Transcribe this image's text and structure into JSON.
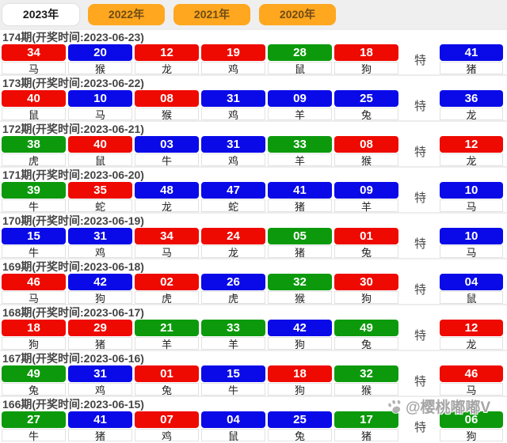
{
  "tabs": [
    {
      "label": "2023年",
      "selected": true
    },
    {
      "label": "2022年",
      "selected": false
    },
    {
      "label": "2021年",
      "selected": false
    },
    {
      "label": "2020年",
      "selected": false
    }
  ],
  "special_label": "特",
  "watermark": {
    "icon": "paw-icon",
    "text": "@樱桃嘟嘟V"
  },
  "colors": {
    "red": "#ee0a00",
    "blue": "#0a0ae8",
    "green": "#0c9a0c",
    "tab_orange": "#ffa71f"
  },
  "draws": [
    {
      "header": "174期(开奖时间:2023-06-23)",
      "numbers": [
        {
          "num": "34",
          "color": "red",
          "zodiac": "马"
        },
        {
          "num": "20",
          "color": "blue",
          "zodiac": "猴"
        },
        {
          "num": "12",
          "color": "red",
          "zodiac": "龙"
        },
        {
          "num": "19",
          "color": "red",
          "zodiac": "鸡"
        },
        {
          "num": "28",
          "color": "green",
          "zodiac": "鼠"
        },
        {
          "num": "18",
          "color": "red",
          "zodiac": "狗"
        }
      ],
      "special": {
        "num": "41",
        "color": "blue",
        "zodiac": "猪"
      }
    },
    {
      "header": "173期(开奖时间:2023-06-22)",
      "numbers": [
        {
          "num": "40",
          "color": "red",
          "zodiac": "鼠"
        },
        {
          "num": "10",
          "color": "blue",
          "zodiac": "马"
        },
        {
          "num": "08",
          "color": "red",
          "zodiac": "猴"
        },
        {
          "num": "31",
          "color": "blue",
          "zodiac": "鸡"
        },
        {
          "num": "09",
          "color": "blue",
          "zodiac": "羊"
        },
        {
          "num": "25",
          "color": "blue",
          "zodiac": "兔"
        }
      ],
      "special": {
        "num": "36",
        "color": "blue",
        "zodiac": "龙"
      }
    },
    {
      "header": "172期(开奖时间:2023-06-21)",
      "numbers": [
        {
          "num": "38",
          "color": "green",
          "zodiac": "虎"
        },
        {
          "num": "40",
          "color": "red",
          "zodiac": "鼠"
        },
        {
          "num": "03",
          "color": "blue",
          "zodiac": "牛"
        },
        {
          "num": "31",
          "color": "blue",
          "zodiac": "鸡"
        },
        {
          "num": "33",
          "color": "green",
          "zodiac": "羊"
        },
        {
          "num": "08",
          "color": "red",
          "zodiac": "猴"
        }
      ],
      "special": {
        "num": "12",
        "color": "red",
        "zodiac": "龙"
      }
    },
    {
      "header": "171期(开奖时间:2023-06-20)",
      "numbers": [
        {
          "num": "39",
          "color": "green",
          "zodiac": "牛"
        },
        {
          "num": "35",
          "color": "red",
          "zodiac": "蛇"
        },
        {
          "num": "48",
          "color": "blue",
          "zodiac": "龙"
        },
        {
          "num": "47",
          "color": "blue",
          "zodiac": "蛇"
        },
        {
          "num": "41",
          "color": "blue",
          "zodiac": "猪"
        },
        {
          "num": "09",
          "color": "blue",
          "zodiac": "羊"
        }
      ],
      "special": {
        "num": "10",
        "color": "blue",
        "zodiac": "马"
      }
    },
    {
      "header": "170期(开奖时间:2023-06-19)",
      "numbers": [
        {
          "num": "15",
          "color": "blue",
          "zodiac": "牛"
        },
        {
          "num": "31",
          "color": "blue",
          "zodiac": "鸡"
        },
        {
          "num": "34",
          "color": "red",
          "zodiac": "马"
        },
        {
          "num": "24",
          "color": "red",
          "zodiac": "龙"
        },
        {
          "num": "05",
          "color": "green",
          "zodiac": "猪"
        },
        {
          "num": "01",
          "color": "red",
          "zodiac": "兔"
        }
      ],
      "special": {
        "num": "10",
        "color": "blue",
        "zodiac": "马"
      }
    },
    {
      "header": "169期(开奖时间:2023-06-18)",
      "numbers": [
        {
          "num": "46",
          "color": "red",
          "zodiac": "马"
        },
        {
          "num": "42",
          "color": "blue",
          "zodiac": "狗"
        },
        {
          "num": "02",
          "color": "red",
          "zodiac": "虎"
        },
        {
          "num": "26",
          "color": "blue",
          "zodiac": "虎"
        },
        {
          "num": "32",
          "color": "green",
          "zodiac": "猴"
        },
        {
          "num": "30",
          "color": "red",
          "zodiac": "狗"
        }
      ],
      "special": {
        "num": "04",
        "color": "blue",
        "zodiac": "鼠"
      }
    },
    {
      "header": "168期(开奖时间:2023-06-17)",
      "numbers": [
        {
          "num": "18",
          "color": "red",
          "zodiac": "狗"
        },
        {
          "num": "29",
          "color": "red",
          "zodiac": "猪"
        },
        {
          "num": "21",
          "color": "green",
          "zodiac": "羊"
        },
        {
          "num": "33",
          "color": "green",
          "zodiac": "羊"
        },
        {
          "num": "42",
          "color": "blue",
          "zodiac": "狗"
        },
        {
          "num": "49",
          "color": "green",
          "zodiac": "兔"
        }
      ],
      "special": {
        "num": "12",
        "color": "red",
        "zodiac": "龙"
      }
    },
    {
      "header": "167期(开奖时间:2023-06-16)",
      "numbers": [
        {
          "num": "49",
          "color": "green",
          "zodiac": "兔"
        },
        {
          "num": "31",
          "color": "blue",
          "zodiac": "鸡"
        },
        {
          "num": "01",
          "color": "red",
          "zodiac": "兔"
        },
        {
          "num": "15",
          "color": "blue",
          "zodiac": "牛"
        },
        {
          "num": "18",
          "color": "red",
          "zodiac": "狗"
        },
        {
          "num": "32",
          "color": "green",
          "zodiac": "猴"
        }
      ],
      "special": {
        "num": "46",
        "color": "red",
        "zodiac": "马"
      }
    },
    {
      "header": "166期(开奖时间:2023-06-15)",
      "numbers": [
        {
          "num": "27",
          "color": "green",
          "zodiac": "牛"
        },
        {
          "num": "41",
          "color": "blue",
          "zodiac": "猪"
        },
        {
          "num": "07",
          "color": "red",
          "zodiac": "鸡"
        },
        {
          "num": "04",
          "color": "blue",
          "zodiac": "鼠"
        },
        {
          "num": "25",
          "color": "blue",
          "zodiac": "兔"
        },
        {
          "num": "17",
          "color": "green",
          "zodiac": "猪"
        }
      ],
      "special": {
        "num": "06",
        "color": "green",
        "zodiac": "狗"
      }
    }
  ]
}
